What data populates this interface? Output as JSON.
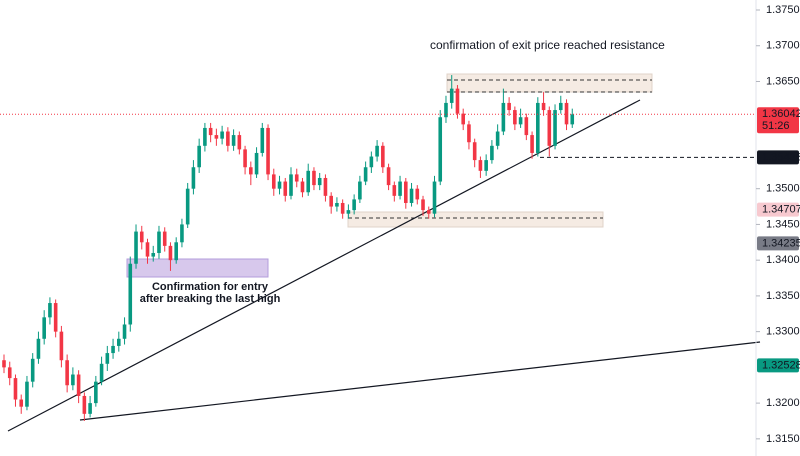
{
  "chart_data": {
    "type": "candlestick",
    "up_color": "#089981",
    "down_color": "#f23645",
    "ylim": [
      1.3126,
      1.3764
    ],
    "yticks": [
      {
        "value": 1.375,
        "label": "1.37500"
      },
      {
        "value": 1.37,
        "label": "1.37000"
      },
      {
        "value": 1.365,
        "label": "1.36500"
      },
      {
        "value": 1.35,
        "label": "1.35000"
      },
      {
        "value": 1.345,
        "label": "1.34500"
      },
      {
        "value": 1.34,
        "label": "1.34000"
      },
      {
        "value": 1.335,
        "label": "1.33500"
      },
      {
        "value": 1.33,
        "label": "1.33000"
      },
      {
        "value": 1.32,
        "label": "1.32000"
      },
      {
        "value": 1.315,
        "label": "1.31500"
      }
    ],
    "open": [
      1.326,
      1.325,
      1.3235,
      1.3205,
      1.3195,
      1.323,
      1.3262,
      1.329,
      1.332,
      1.334,
      1.33,
      1.326,
      1.3225,
      1.324,
      1.321,
      1.3185,
      1.32,
      1.323,
      1.3255,
      1.327,
      1.328,
      1.329,
      1.331,
      1.3395,
      1.344,
      1.3425,
      1.3405,
      1.341,
      1.344,
      1.342,
      1.34,
      1.3425,
      1.345,
      1.35,
      1.353,
      1.356,
      1.3585,
      1.3575,
      1.357,
      1.358,
      1.356,
      1.3575,
      1.3555,
      1.353,
      1.352,
      1.355,
      1.3585,
      1.352,
      1.35,
      1.351,
      1.349,
      1.352,
      1.351,
      1.3495,
      1.3525,
      1.3505,
      1.3515,
      1.349,
      1.3475,
      1.348,
      1.3465,
      1.347,
      1.3485,
      1.351,
      1.353,
      1.3545,
      1.356,
      1.353,
      1.3505,
      1.349,
      1.351,
      1.348,
      1.35,
      1.3485,
      1.347,
      1.3465,
      1.351,
      1.36,
      1.362,
      1.364,
      1.3605,
      1.359,
      1.3565,
      1.354,
      1.3525,
      1.354,
      1.356,
      1.358,
      1.362,
      1.361,
      1.359,
      1.36,
      1.3575,
      1.355,
      1.362,
      1.361,
      1.356,
      1.361,
      1.362,
      1.359
    ],
    "high": [
      1.3268,
      1.3258,
      1.324,
      1.3212,
      1.3238,
      1.327,
      1.33,
      1.333,
      1.3348,
      1.3345,
      1.3308,
      1.3268,
      1.325,
      1.3246,
      1.3215,
      1.321,
      1.3238,
      1.3265,
      1.328,
      1.329,
      1.33,
      1.332,
      1.3405,
      1.345,
      1.3448,
      1.343,
      1.342,
      1.3448,
      1.3446,
      1.3425,
      1.3432,
      1.3458,
      1.3508,
      1.354,
      1.357,
      1.3592,
      1.3592,
      1.3584,
      1.3588,
      1.3586,
      1.3583,
      1.358,
      1.356,
      1.3538,
      1.3558,
      1.3592,
      1.359,
      1.3528,
      1.3518,
      1.3515,
      1.353,
      1.3528,
      1.3515,
      1.3535,
      1.353,
      1.3522,
      1.352,
      1.3495,
      1.3488,
      1.3485,
      1.3478,
      1.3492,
      1.3518,
      1.3538,
      1.3552,
      1.3568,
      1.3565,
      1.3535,
      1.351,
      1.3518,
      1.3515,
      1.3508,
      1.3505,
      1.349,
      1.3475,
      1.3518,
      1.361,
      1.363,
      1.3659,
      1.3645,
      1.3612,
      1.3595,
      1.357,
      1.3545,
      1.3548,
      1.3568,
      1.359,
      1.364,
      1.3628,
      1.3615,
      1.3612,
      1.3605,
      1.358,
      1.3628,
      1.3635,
      1.3615,
      1.3618,
      1.363,
      1.3625,
      1.3612
    ],
    "low": [
      1.3242,
      1.3225,
      1.3195,
      1.3185,
      1.319,
      1.3222,
      1.3255,
      1.3282,
      1.331,
      1.3292,
      1.325,
      1.3215,
      1.3218,
      1.32,
      1.3175,
      1.318,
      1.3195,
      1.3225,
      1.3245,
      1.3262,
      1.3272,
      1.3282,
      1.33,
      1.3388,
      1.3415,
      1.3395,
      1.3398,
      1.3402,
      1.3412,
      1.3385,
      1.3395,
      1.3418,
      1.3445,
      1.3492,
      1.3522,
      1.3552,
      1.3565,
      1.356,
      1.3562,
      1.3552,
      1.3553,
      1.3548,
      1.352,
      1.3505,
      1.3515,
      1.3545,
      1.3512,
      1.349,
      1.3492,
      1.3482,
      1.3485,
      1.3502,
      1.3488,
      1.349,
      1.3498,
      1.3498,
      1.3482,
      1.3465,
      1.3468,
      1.3458,
      1.3458,
      1.3464,
      1.348,
      1.3505,
      1.3522,
      1.3538,
      1.3522,
      1.3498,
      1.3482,
      1.3485,
      1.3472,
      1.3475,
      1.3478,
      1.3462,
      1.3458,
      1.346,
      1.3505,
      1.3592,
      1.3612,
      1.3598,
      1.3582,
      1.3555,
      1.353,
      1.3515,
      1.3518,
      1.3535,
      1.3555,
      1.3575,
      1.3602,
      1.3582,
      1.3585,
      1.3568,
      1.3542,
      1.3545,
      1.3602,
      1.3545,
      1.3555,
      1.3605,
      1.3582,
      1.3585
    ],
    "close": [
      1.325,
      1.3235,
      1.3205,
      1.3195,
      1.323,
      1.3262,
      1.329,
      1.332,
      1.334,
      1.33,
      1.326,
      1.3225,
      1.324,
      1.321,
      1.3185,
      1.32,
      1.323,
      1.3255,
      1.327,
      1.328,
      1.329,
      1.331,
      1.3395,
      1.344,
      1.3425,
      1.3405,
      1.341,
      1.344,
      1.342,
      1.34,
      1.3425,
      1.345,
      1.35,
      1.353,
      1.356,
      1.3585,
      1.3575,
      1.357,
      1.358,
      1.356,
      1.3575,
      1.3555,
      1.353,
      1.352,
      1.355,
      1.3585,
      1.352,
      1.35,
      1.351,
      1.349,
      1.352,
      1.351,
      1.3495,
      1.3525,
      1.3505,
      1.3515,
      1.349,
      1.3475,
      1.348,
      1.3465,
      1.347,
      1.3485,
      1.351,
      1.353,
      1.3545,
      1.356,
      1.353,
      1.3505,
      1.349,
      1.351,
      1.348,
      1.35,
      1.3485,
      1.347,
      1.3465,
      1.351,
      1.36,
      1.362,
      1.364,
      1.3605,
      1.359,
      1.3565,
      1.354,
      1.3525,
      1.354,
      1.356,
      1.358,
      1.362,
      1.361,
      1.359,
      1.36,
      1.3575,
      1.355,
      1.362,
      1.361,
      1.356,
      1.361,
      1.362,
      1.359,
      1.3604
    ],
    "price_labels": [
      {
        "value": 1.36042,
        "color": "#f23645",
        "line": "dotted",
        "timer": "51:26"
      },
      {
        "value": 1.35438,
        "color": "#131722",
        "line": "dashed"
      },
      {
        "value": 1.34707,
        "color": "#f7c9cf",
        "line": "none"
      },
      {
        "value": 1.34235,
        "color": "#787b86",
        "line": "none"
      },
      {
        "value": 1.32528,
        "color": "#089981",
        "line": "none"
      }
    ],
    "annotations": [
      "confirmation of exit price reached resistance",
      "Confirmation for entry",
      "after breaking the last high"
    ]
  }
}
